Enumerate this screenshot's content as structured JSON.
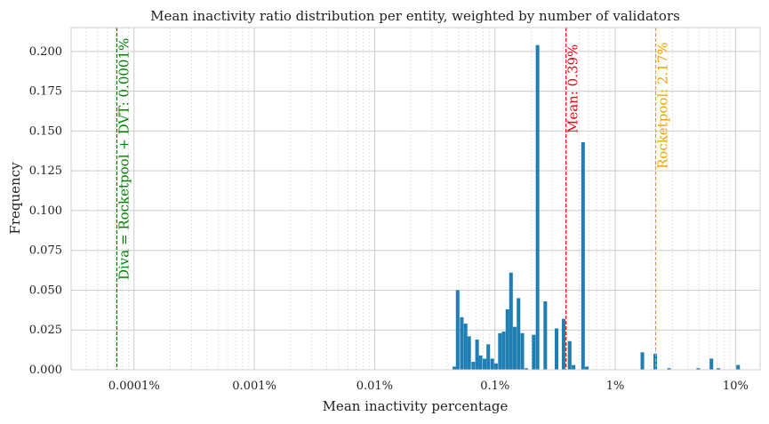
{
  "chart_data": {
    "type": "bar",
    "title": "Mean inactivity ratio distribution per entity, weighted by number of validators",
    "xlabel": "Mean inactivity percentage",
    "ylabel": "Frequency",
    "x_scale": "log",
    "xlim": [
      3e-05,
      16
    ],
    "ylim": [
      0,
      0.215
    ],
    "grid": true,
    "x_ticks": [
      {
        "value": 0.0001,
        "label": "0.0001%"
      },
      {
        "value": 0.001,
        "label": "0.001%"
      },
      {
        "value": 0.01,
        "label": "0.01%"
      },
      {
        "value": 0.1,
        "label": "0.1%"
      },
      {
        "value": 1,
        "label": "1%"
      },
      {
        "value": 10,
        "label": "10%"
      }
    ],
    "y_ticks": [
      {
        "value": 0,
        "label": "0.000"
      },
      {
        "value": 0.025,
        "label": "0.025"
      },
      {
        "value": 0.05,
        "label": "0.050"
      },
      {
        "value": 0.075,
        "label": "0.075"
      },
      {
        "value": 0.1,
        "label": "0.100"
      },
      {
        "value": 0.125,
        "label": "0.125"
      },
      {
        "value": 0.15,
        "label": "0.150"
      },
      {
        "value": 0.175,
        "label": "0.175"
      },
      {
        "value": 0.2,
        "label": "0.200"
      }
    ],
    "bar_color": "#1f7fb4",
    "bars": [
      {
        "x": 0.046,
        "y": 0.002
      },
      {
        "x": 0.049,
        "y": 0.05
      },
      {
        "x": 0.053,
        "y": 0.033
      },
      {
        "x": 0.057,
        "y": 0.029
      },
      {
        "x": 0.061,
        "y": 0.021
      },
      {
        "x": 0.066,
        "y": 0.005
      },
      {
        "x": 0.071,
        "y": 0.019
      },
      {
        "x": 0.076,
        "y": 0.009
      },
      {
        "x": 0.082,
        "y": 0.007
      },
      {
        "x": 0.088,
        "y": 0.016
      },
      {
        "x": 0.095,
        "y": 0.007
      },
      {
        "x": 0.102,
        "y": 0.004
      },
      {
        "x": 0.11,
        "y": 0.023
      },
      {
        "x": 0.118,
        "y": 0.024
      },
      {
        "x": 0.127,
        "y": 0.038
      },
      {
        "x": 0.136,
        "y": 0.061
      },
      {
        "x": 0.146,
        "y": 0.027
      },
      {
        "x": 0.157,
        "y": 0.045
      },
      {
        "x": 0.169,
        "y": 0.023
      },
      {
        "x": 0.182,
        "y": 0.001
      },
      {
        "x": 0.21,
        "y": 0.022
      },
      {
        "x": 0.226,
        "y": 0.204
      },
      {
        "x": 0.262,
        "y": 0.043
      },
      {
        "x": 0.325,
        "y": 0.026
      },
      {
        "x": 0.372,
        "y": 0.032
      },
      {
        "x": 0.418,
        "y": 0.018
      },
      {
        "x": 0.45,
        "y": 0.003
      },
      {
        "x": 0.54,
        "y": 0.143
      },
      {
        "x": 0.58,
        "y": 0.002
      },
      {
        "x": 1.68,
        "y": 0.011
      },
      {
        "x": 2.15,
        "y": 0.01
      },
      {
        "x": 2.8,
        "y": 0.001
      },
      {
        "x": 4.9,
        "y": 0.001
      },
      {
        "x": 6.3,
        "y": 0.007
      },
      {
        "x": 7.2,
        "y": 0.001
      },
      {
        "x": 10.5,
        "y": 0.003
      }
    ],
    "reference_lines": [
      {
        "x": 7.2e-05,
        "label": "Diva = Rocketpool + DVT: 0.0001%",
        "color": "#008000"
      },
      {
        "x": 0.39,
        "label": "Mean: 0.39%",
        "color": "#e8000b"
      },
      {
        "x": 2.17,
        "label": "Rocketpool: 2.17%",
        "color": "#f2a200"
      }
    ]
  }
}
